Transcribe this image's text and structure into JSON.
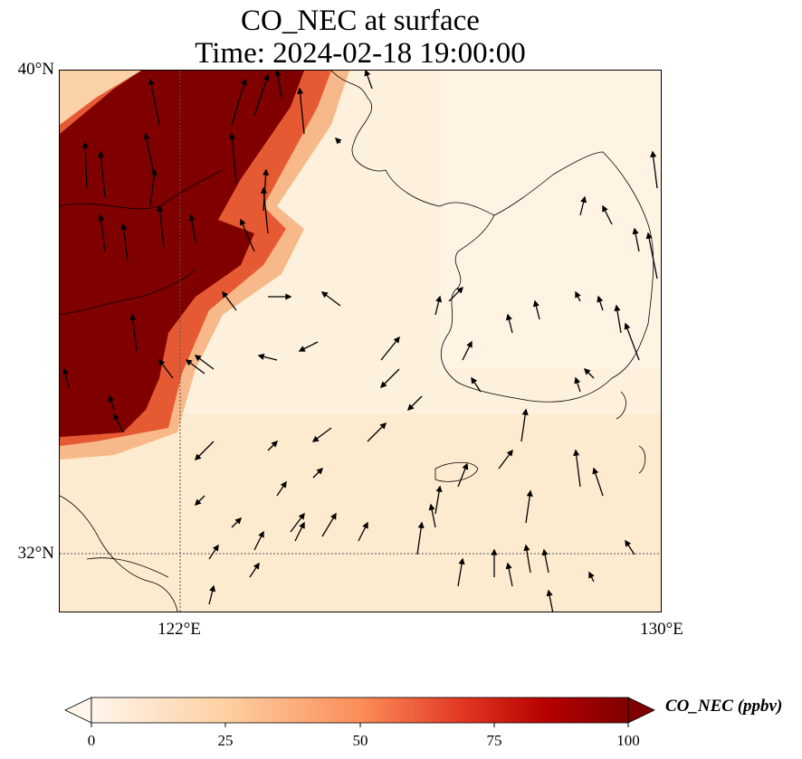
{
  "figure": {
    "title_line1": "CO_NEC at surface",
    "title_line2": "Time: 2024-02-18 19:00:00"
  },
  "map": {
    "lon_range": [
      120,
      130
    ],
    "lat_range": [
      31,
      40
    ],
    "lat_ticks": [
      {
        "value": 40,
        "label": "40°N"
      },
      {
        "value": 32,
        "label": "32°N"
      }
    ],
    "lon_ticks": [
      {
        "value": 122,
        "label": "122°E"
      },
      {
        "value": 130,
        "label": "130°E"
      }
    ],
    "gridlines": {
      "lon": [
        122
      ],
      "lat": [
        32
      ],
      "style": "dotted"
    },
    "background_color": "#fdf0dc",
    "high_color": "#800000"
  },
  "colorbar": {
    "label": "CO_NEC (ppbv)",
    "min": 0,
    "max": 100,
    "extend": "both",
    "ticks": [
      {
        "value": 0,
        "label": "0"
      },
      {
        "value": 25,
        "label": "25"
      },
      {
        "value": 50,
        "label": "50"
      },
      {
        "value": 75,
        "label": "75"
      },
      {
        "value": 100,
        "label": "100"
      }
    ],
    "colors": [
      "#fff5eb",
      "#fdd9a9",
      "#fc9e6c",
      "#e6412a",
      "#b30000",
      "#7f0000"
    ]
  }
}
